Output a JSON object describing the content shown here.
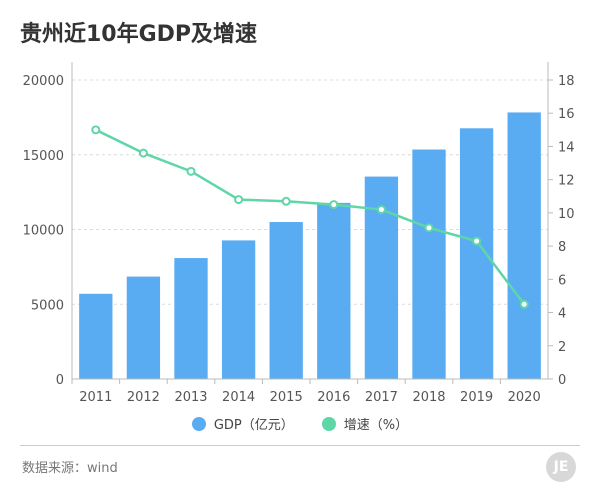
{
  "title": "贵州近10年GDP及增速",
  "source": "数据来源：wind",
  "logo_text": "JE",
  "colors": {
    "bar": "#5AACF2",
    "line": "#5ED6A8",
    "grid": "#dcdcdc",
    "axis": "#bbbbbb"
  },
  "chart_data": {
    "type": "bar",
    "title": "贵州近10年GDP及增速",
    "categories": [
      "2011",
      "2012",
      "2013",
      "2014",
      "2015",
      "2016",
      "2017",
      "2018",
      "2019",
      "2020"
    ],
    "series": [
      {
        "name": "GDP（亿元）",
        "type": "bar",
        "axis": "left",
        "values": [
          5700,
          6850,
          8090,
          9270,
          10500,
          11780,
          13540,
          15350,
          16770,
          17830
        ]
      },
      {
        "name": "增速（%）",
        "type": "line",
        "axis": "right",
        "values": [
          15.0,
          13.6,
          12.5,
          10.8,
          10.7,
          10.5,
          10.2,
          9.1,
          8.3,
          4.5
        ]
      }
    ],
    "y_left": {
      "min": 0,
      "max": 20000,
      "ticks": [
        "0",
        "5000",
        "10000",
        "15000",
        "20000"
      ]
    },
    "y_right": {
      "min": 0,
      "max": 18,
      "ticks": [
        "0",
        "2",
        "4",
        "6",
        "8",
        "10",
        "12",
        "14",
        "16",
        "18"
      ]
    },
    "legend": [
      "GDP（亿元）",
      "增速（%）"
    ],
    "legend_position": "bottom",
    "grid": true
  }
}
